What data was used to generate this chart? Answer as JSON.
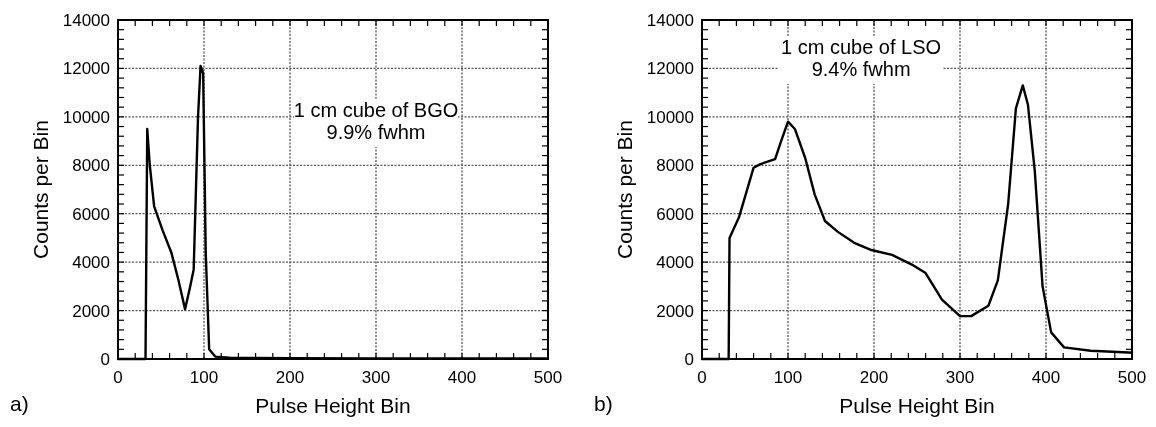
{
  "chart_data": [
    {
      "type": "line",
      "xlabel": "Pulse Height Bin",
      "ylabel": "Counts per Bin",
      "xlim": [
        0,
        500
      ],
      "ylim": [
        0,
        14000
      ],
      "xticks": [
        0,
        100,
        200,
        300,
        400,
        500
      ],
      "yticks": [
        0,
        2000,
        4000,
        6000,
        8000,
        10000,
        12000,
        14000
      ],
      "grid": true,
      "annotations": [
        "1 cm cube of BGO\n9.9% fwhm",
        "a)"
      ],
      "series": [
        {
          "color": "#000000",
          "x": [
            0,
            31,
            32,
            34,
            37,
            42,
            52,
            62,
            70,
            78,
            84,
            88,
            93,
            96,
            99,
            102,
            106,
            113,
            130,
            200,
            300,
            400,
            500
          ],
          "values": [
            0,
            0,
            0,
            9500,
            8000,
            6300,
            5300,
            4400,
            3300,
            2050,
            3000,
            3700,
            9950,
            12100,
            11800,
            4400,
            400,
            100,
            50,
            30,
            20,
            20,
            20
          ]
        }
      ]
    },
    {
      "type": "line",
      "xlabel": "Pulse Height Bin",
      "ylabel": "Counts per Bin",
      "xlim": [
        0,
        500
      ],
      "ylim": [
        0,
        14000
      ],
      "xticks": [
        0,
        100,
        200,
        300,
        400,
        500
      ],
      "yticks": [
        0,
        2000,
        4000,
        6000,
        8000,
        10000,
        12000,
        14000
      ],
      "grid": true,
      "annotations": [
        "1 cm cube of LSO\n9.4% fwhm",
        "b)"
      ],
      "series": [
        {
          "color": "#000000",
          "x": [
            0,
            31,
            32,
            43,
            60,
            68,
            85,
            92,
            100,
            108,
            120,
            131,
            143,
            158,
            177,
            197,
            221,
            244,
            260,
            279,
            300,
            313,
            333,
            344,
            356,
            365,
            373,
            379,
            387,
            396,
            406,
            421,
            452,
            496,
            500
          ],
          "values": [
            0,
            0,
            5000,
            5850,
            7900,
            8050,
            8250,
            9000,
            9800,
            9500,
            8300,
            6800,
            5700,
            5250,
            4800,
            4500,
            4300,
            3900,
            3550,
            2450,
            1770,
            1770,
            2200,
            3250,
            6400,
            10350,
            11300,
            10500,
            7750,
            3000,
            1100,
            480,
            340,
            270,
            260
          ]
        }
      ]
    }
  ]
}
